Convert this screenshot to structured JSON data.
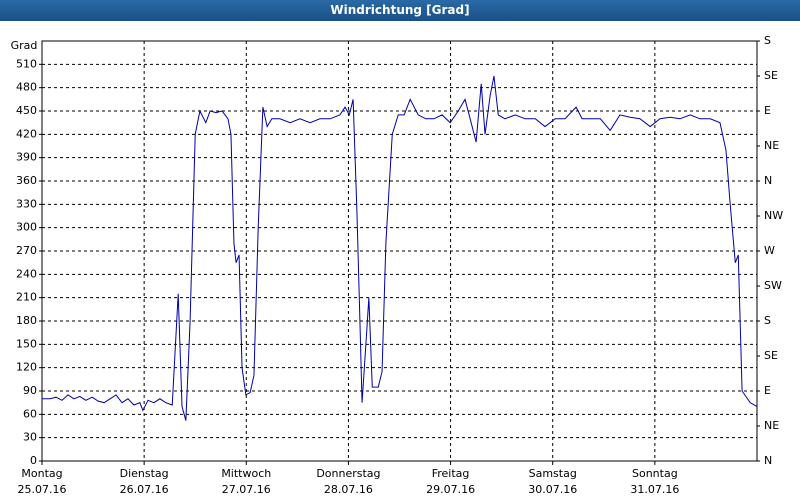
{
  "chart_data": {
    "type": "line",
    "title": "Windrichtung [Grad]",
    "y_label": "Grad",
    "color": "#0000a8",
    "grid": true,
    "xlim": [
      0,
      168
    ],
    "xticks": [
      {
        "value": 0,
        "label": "Montag 25.07.16"
      },
      {
        "value": 24,
        "label": "Dienstag 26.07.16"
      },
      {
        "value": 48,
        "label": "Mittwoch 27.07.16"
      },
      {
        "value": 72,
        "label": "Donnerstag 28.07.16"
      },
      {
        "value": 96,
        "label": "Freitag 29.07.16"
      },
      {
        "value": 120,
        "label": "Samstag 30.07.16"
      },
      {
        "value": 144,
        "label": "Sonntag 31.07.16"
      }
    ],
    "ylim": [
      0,
      540
    ],
    "yticks": [
      0,
      30,
      60,
      90,
      120,
      150,
      180,
      210,
      240,
      270,
      300,
      330,
      360,
      390,
      420,
      450,
      480,
      510
    ],
    "y2lim": [
      0,
      540
    ],
    "y2ticks": [
      {
        "value": 0,
        "label": "N"
      },
      {
        "value": 45,
        "label": "NE"
      },
      {
        "value": 90,
        "label": "E"
      },
      {
        "value": 135,
        "label": "SE"
      },
      {
        "value": 180,
        "label": "S"
      },
      {
        "value": 225,
        "label": "SW"
      },
      {
        "value": 270,
        "label": "W"
      },
      {
        "value": 315,
        "label": "NW"
      },
      {
        "value": 360,
        "label": "N"
      },
      {
        "value": 405,
        "label": "NE"
      },
      {
        "value": 450,
        "label": "E"
      },
      {
        "value": 495,
        "label": "SE"
      },
      {
        "value": 540,
        "label": "S"
      }
    ],
    "x": [
      0,
      1.9,
      3.3,
      4.7,
      6.1,
      7.5,
      8.9,
      10.3,
      11.8,
      13.2,
      14.6,
      16,
      17.4,
      18.8,
      20.2,
      21.6,
      23,
      23.7,
      24.9,
      26.3,
      27.7,
      29.1,
      30.6,
      32,
      32.9,
      33.8,
      34.8,
      36,
      37.1,
      38.5,
      39.5,
      40.9,
      42.3,
      43.7,
      44.4,
      45.1,
      45.6,
      46.3,
      47,
      47.9,
      48.9,
      49.8,
      50.8,
      51.9,
      52.9,
      54,
      55.9,
      58.3,
      60.6,
      63,
      65.3,
      67.7,
      70,
      71.2,
      72.2,
      73.1,
      74,
      74.7,
      75.2,
      76.1,
      76.8,
      77.6,
      79,
      79.9,
      80.8,
      82.3,
      83.7,
      85.1,
      86.5,
      88.4,
      90.2,
      92.1,
      94,
      95.9,
      97.8,
      99.4,
      100.6,
      102,
      103.2,
      104.1,
      105.3,
      106.2,
      107.2,
      108.8,
      111.2,
      113.5,
      115.9,
      118.2,
      120.6,
      122.9,
      125.5,
      126.9,
      129.3,
      131.2,
      133.5,
      135.8,
      138.2,
      140.5,
      142.9,
      145.2,
      147.6,
      149.9,
      152.3,
      154.6,
      157,
      159.3,
      160.7,
      161.7,
      162.9,
      163.6,
      164.5,
      166.4,
      168
    ],
    "values": [
      80,
      80,
      82,
      78,
      85,
      80,
      83,
      78,
      82,
      77,
      75,
      80,
      85,
      75,
      80,
      72,
      75,
      65,
      78,
      75,
      80,
      75,
      72,
      215,
      70,
      52,
      180,
      420,
      450,
      435,
      450,
      448,
      450,
      440,
      420,
      280,
      255,
      265,
      120,
      85,
      88,
      110,
      300,
      455,
      430,
      440,
      440,
      435,
      440,
      435,
      440,
      440,
      445,
      455,
      445,
      465,
      320,
      180,
      75,
      150,
      210,
      95,
      95,
      115,
      280,
      420,
      445,
      445,
      465,
      445,
      440,
      440,
      445,
      435,
      450,
      465,
      440,
      410,
      485,
      420,
      470,
      495,
      445,
      440,
      445,
      440,
      440,
      430,
      440,
      440,
      455,
      440,
      440,
      440,
      425,
      445,
      442,
      440,
      430,
      440,
      442,
      440,
      445,
      440,
      440,
      435,
      400,
      330,
      255,
      265,
      90,
      75,
      70
    ]
  }
}
